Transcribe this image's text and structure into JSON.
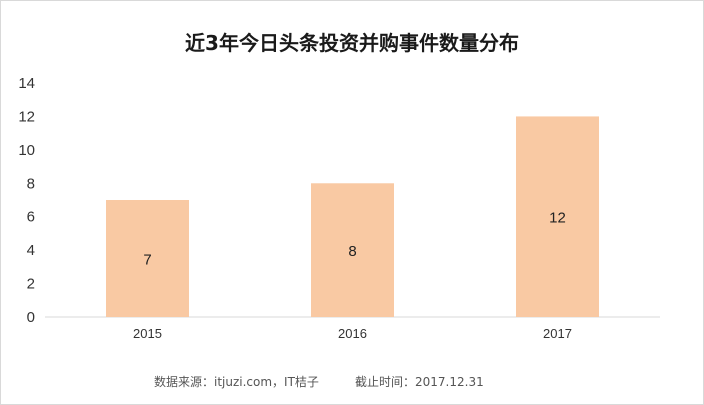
{
  "chart_data": {
    "type": "bar",
    "title": "近3年今日头条投资并购事件数量分布",
    "categories": [
      "2015",
      "2016",
      "2017"
    ],
    "values": [
      7,
      8,
      12
    ],
    "data_labels": [
      "7",
      "8",
      "12"
    ],
    "ylim": [
      0,
      14
    ],
    "yticks": [
      "0",
      "2",
      "4",
      "6",
      "8",
      "10",
      "12",
      "14"
    ],
    "xlabel": "",
    "ylabel": "",
    "grid": false,
    "bar_color": "#f9c9a3"
  },
  "footer": {
    "source": "数据来源：itjuzi.com，IT桔子",
    "cutoff": "截止时间：2017.12.31"
  }
}
